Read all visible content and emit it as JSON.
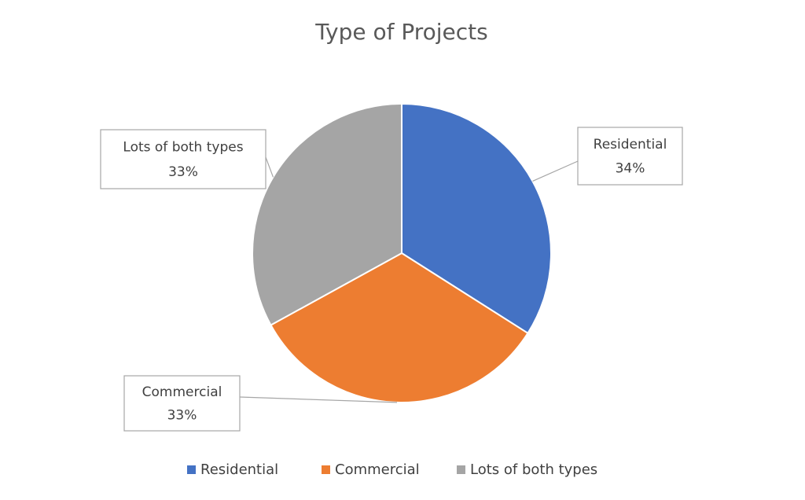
{
  "chart_data": {
    "type": "pie",
    "title": "Type of Projects",
    "categories": [
      "Residential",
      "Commercial",
      "Lots of both types"
    ],
    "values": [
      34,
      33,
      33
    ],
    "value_labels": [
      "34%",
      "33%",
      "33%"
    ],
    "colors": [
      "#4472c4",
      "#ed7d31",
      "#a5a5a5"
    ],
    "legend": "bottom"
  }
}
